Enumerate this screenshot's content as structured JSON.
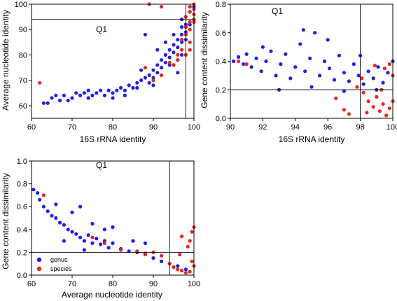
{
  "colors": {
    "genus": "#1f1fe6",
    "species": "#e8261e",
    "axis": "#000000"
  },
  "legend": {
    "placement": "bottom-left",
    "entries": [
      "genus",
      "species"
    ]
  },
  "chart_data": [
    {
      "type": "scatter",
      "xlabel": "16S rRNA identity",
      "ylabel": "Average nucleotide identity",
      "quadrant_label": "Q1",
      "xlim": [
        60,
        100
      ],
      "ylim": [
        55,
        100
      ],
      "xticks": [
        60,
        70,
        80,
        90,
        100
      ],
      "yticks": [
        60,
        70,
        80,
        90,
        100
      ],
      "xtick_labels": [
        "60",
        "70",
        "80",
        "90",
        "100"
      ],
      "ytick_labels": [
        "60",
        "70",
        "80",
        "90",
        "100"
      ],
      "thresholds": {
        "x": 98,
        "y": 94
      },
      "grid": false,
      "series": [
        {
          "name": "genus",
          "color": "#1f1fe6",
          "points": [
            [
              64,
              61
            ],
            [
              65,
              63
            ],
            [
              67,
              62
            ],
            [
              68,
              64
            ],
            [
              70,
              63
            ],
            [
              72,
              64
            ],
            [
              73,
              65
            ],
            [
              74,
              63
            ],
            [
              75,
              64
            ],
            [
              76,
              65
            ],
            [
              78,
              64
            ],
            [
              79,
              66
            ],
            [
              80,
              65
            ],
            [
              81,
              66
            ],
            [
              82,
              67
            ],
            [
              83,
              66
            ],
            [
              84,
              68
            ],
            [
              85,
              67
            ],
            [
              86,
              69
            ],
            [
              87,
              70
            ],
            [
              88,
              71
            ],
            [
              89,
              72
            ],
            [
              90,
              71
            ],
            [
              90,
              74
            ],
            [
              91,
              73
            ],
            [
              91,
              76
            ],
            [
              92,
              75
            ],
            [
              92,
              78
            ],
            [
              93,
              77
            ],
            [
              93,
              80
            ],
            [
              94,
              79
            ],
            [
              94,
              82
            ],
            [
              95,
              81
            ],
            [
              95,
              84
            ],
            [
              96,
              83
            ],
            [
              96,
              86
            ],
            [
              97,
              85
            ],
            [
              97,
              88
            ],
            [
              97,
              91
            ],
            [
              98,
              89
            ],
            [
              98,
              92
            ],
            [
              98,
              95
            ],
            [
              99,
              97
            ],
            [
              99,
              99
            ],
            [
              96,
              78
            ],
            [
              94,
              76
            ],
            [
              92,
              72
            ],
            [
              89,
              69
            ],
            [
              86,
              67
            ],
            [
              83,
              64
            ],
            [
              80,
              63
            ],
            [
              77,
              66
            ],
            [
              74,
              66
            ],
            [
              71,
              65
            ],
            [
              69,
              62
            ],
            [
              66,
              64
            ],
            [
              63,
              61
            ],
            [
              95,
              88
            ],
            [
              93,
              85
            ],
            [
              97,
              94
            ],
            [
              91,
              82
            ],
            [
              88,
              88
            ],
            [
              87,
              74
            ],
            [
              90,
              68
            ],
            [
              95,
              76
            ],
            [
              99,
              92
            ],
            [
              98,
              86
            ],
            [
              97,
              80
            ],
            [
              96,
              73
            ],
            [
              100,
              99
            ]
          ]
        },
        {
          "name": "species",
          "color": "#e8261e",
          "points": [
            [
              62,
              69
            ],
            [
              88,
              75
            ],
            [
              90,
              70
            ],
            [
              92,
              72
            ],
            [
              94,
              77
            ],
            [
              95,
              76
            ],
            [
              96,
              80
            ],
            [
              97,
              82
            ],
            [
              97,
              86
            ],
            [
              98,
              88
            ],
            [
              98,
              91
            ],
            [
              98,
              95
            ],
            [
              99,
              97
            ],
            [
              99,
              99
            ],
            [
              100,
              98
            ],
            [
              100,
              96
            ],
            [
              100,
              93
            ],
            [
              99,
              90
            ],
            [
              99,
              85
            ],
            [
              98,
              80
            ],
            [
              96,
              78
            ],
            [
              92,
              99
            ],
            [
              89,
              100
            ],
            [
              99,
              82
            ],
            [
              100,
              100
            ],
            [
              100,
              94
            ],
            [
              99,
              93
            ]
          ]
        }
      ]
    },
    {
      "type": "scatter",
      "xlabel": "16S rRNA identity",
      "ylabel": "Gene content dissimilarity",
      "quadrant_label": "Q1",
      "xlim": [
        90,
        100
      ],
      "ylim": [
        0,
        0.8
      ],
      "xticks": [
        90,
        92,
        94,
        96,
        98,
        100
      ],
      "yticks": [
        0,
        0.2,
        0.4,
        0.6,
        0.8
      ],
      "xtick_labels": [
        "90",
        "92",
        "94",
        "96",
        "98",
        "100"
      ],
      "ytick_labels": [
        "0.0",
        "0.2",
        "0.4",
        "0.6",
        "0.8"
      ],
      "thresholds": {
        "x": 98,
        "y": 0.2
      },
      "grid": false,
      "series": [
        {
          "name": "genus",
          "color": "#1f1fe6",
          "points": [
            [
              90.2,
              0.4
            ],
            [
              90.5,
              0.43
            ],
            [
              90.8,
              0.38
            ],
            [
              91.0,
              0.45
            ],
            [
              91.3,
              0.36
            ],
            [
              91.6,
              0.42
            ],
            [
              91.9,
              0.33
            ],
            [
              92.2,
              0.4
            ],
            [
              92.5,
              0.47
            ],
            [
              92.8,
              0.3
            ],
            [
              93.1,
              0.38
            ],
            [
              93.4,
              0.45
            ],
            [
              93.7,
              0.28
            ],
            [
              94.0,
              0.36
            ],
            [
              94.3,
              0.52
            ],
            [
              94.6,
              0.33
            ],
            [
              94.9,
              0.42
            ],
            [
              95.2,
              0.6
            ],
            [
              95.5,
              0.3
            ],
            [
              95.8,
              0.4
            ],
            [
              96.1,
              0.35
            ],
            [
              96.4,
              0.27
            ],
            [
              96.7,
              0.44
            ],
            [
              97.0,
              0.32
            ],
            [
              97.3,
              0.26
            ],
            [
              97.6,
              0.38
            ],
            [
              97.9,
              0.3
            ],
            [
              98.2,
              0.24
            ],
            [
              98.5,
              0.33
            ],
            [
              98.8,
              0.28
            ],
            [
              99.1,
              0.36
            ],
            [
              99.4,
              0.25
            ],
            [
              99.7,
              0.32
            ],
            [
              100.0,
              0.4
            ],
            [
              93.0,
              0.2
            ],
            [
              95.0,
              0.22
            ],
            [
              97.0,
              0.19
            ],
            [
              96.0,
              0.55
            ],
            [
              94.5,
              0.62
            ],
            [
              92.0,
              0.5
            ],
            [
              98.0,
              0.44
            ],
            [
              99.0,
              0.2
            ]
          ]
        },
        {
          "name": "species",
          "color": "#e8261e",
          "points": [
            [
              90.5,
              0.4
            ],
            [
              91.0,
              0.38
            ],
            [
              96.5,
              0.14
            ],
            [
              97.0,
              0.06
            ],
            [
              97.3,
              0.03
            ],
            [
              97.8,
              0.22
            ],
            [
              98.2,
              0.18
            ],
            [
              98.5,
              0.12
            ],
            [
              98.8,
              0.08
            ],
            [
              99.0,
              0.15
            ],
            [
              99.2,
              0.05
            ],
            [
              99.4,
              0.1
            ],
            [
              99.6,
              0.02
            ],
            [
              99.8,
              0.07
            ],
            [
              100.0,
              0.12
            ],
            [
              99.5,
              0.35
            ],
            [
              99.8,
              0.38
            ],
            [
              100.0,
              0.3
            ],
            [
              98.9,
              0.37
            ],
            [
              99.3,
              0.2
            ],
            [
              98.4,
              0.04
            ],
            [
              98.1,
              0.28
            ]
          ]
        }
      ]
    },
    {
      "type": "scatter",
      "xlabel": "Average nucleotide identity",
      "ylabel": "Gene content dissimilarity",
      "quadrant_label": "Q1",
      "xlim": [
        60,
        100
      ],
      "ylim": [
        0,
        1.0
      ],
      "xticks": [
        60,
        70,
        80,
        90,
        100
      ],
      "yticks": [
        0,
        0.2,
        0.4,
        0.6,
        0.8,
        1.0
      ],
      "xtick_labels": [
        "60",
        "70",
        "80",
        "90",
        "100"
      ],
      "ytick_labels": [
        "0.0",
        "0.2",
        "0.4",
        "0.6",
        "0.8",
        "1.0"
      ],
      "thresholds": {
        "x": 94,
        "y": 0.2
      },
      "grid": false,
      "series": [
        {
          "name": "genus",
          "color": "#1f1fe6",
          "points": [
            [
              60.5,
              0.75
            ],
            [
              61.5,
              0.72
            ],
            [
              62,
              0.66
            ],
            [
              63,
              0.6
            ],
            [
              64,
              0.56
            ],
            [
              65,
              0.52
            ],
            [
              66,
              0.5
            ],
            [
              67,
              0.46
            ],
            [
              68,
              0.44
            ],
            [
              69,
              0.4
            ],
            [
              70,
              0.38
            ],
            [
              71,
              0.36
            ],
            [
              72,
              0.33
            ],
            [
              73,
              0.3
            ],
            [
              74,
              0.35
            ],
            [
              75,
              0.28
            ],
            [
              76,
              0.32
            ],
            [
              77,
              0.27
            ],
            [
              78,
              0.3
            ],
            [
              79,
              0.24
            ],
            [
              80,
              0.28
            ],
            [
              82,
              0.23
            ],
            [
              84,
              0.21
            ],
            [
              86,
              0.2
            ],
            [
              88,
              0.19
            ],
            [
              90,
              0.15
            ],
            [
              92,
              0.12
            ],
            [
              94,
              0.1
            ],
            [
              96,
              0.08
            ],
            [
              98,
              0.05
            ],
            [
              70,
              0.55
            ],
            [
              72,
              0.6
            ],
            [
              75,
              0.45
            ],
            [
              78,
              0.4
            ],
            [
              80,
              0.42
            ],
            [
              85,
              0.3
            ],
            [
              68,
              0.3
            ],
            [
              73,
              0.22
            ],
            [
              88,
              0.28
            ],
            [
              66,
              0.62
            ]
          ]
        },
        {
          "name": "species",
          "color": "#e8261e",
          "points": [
            [
              63,
              0.7
            ],
            [
              75,
              0.33
            ],
            [
              78,
              0.28
            ],
            [
              82,
              0.22
            ],
            [
              86,
              0.21
            ],
            [
              88,
              0.18
            ],
            [
              90,
              0.2
            ],
            [
              92,
              0.17
            ],
            [
              94,
              0.1
            ],
            [
              95,
              0.07
            ],
            [
              96,
              0.05
            ],
            [
              97,
              0.04
            ],
            [
              98,
              0.02
            ],
            [
              99,
              0.03
            ],
            [
              99.5,
              0.12
            ],
            [
              99,
              0.3
            ],
            [
              99.5,
              0.38
            ],
            [
              100,
              0.42
            ],
            [
              97,
              0.34
            ],
            [
              98.5,
              0.25
            ],
            [
              100,
              0.08
            ],
            [
              96.5,
              0.18
            ]
          ]
        }
      ]
    }
  ]
}
